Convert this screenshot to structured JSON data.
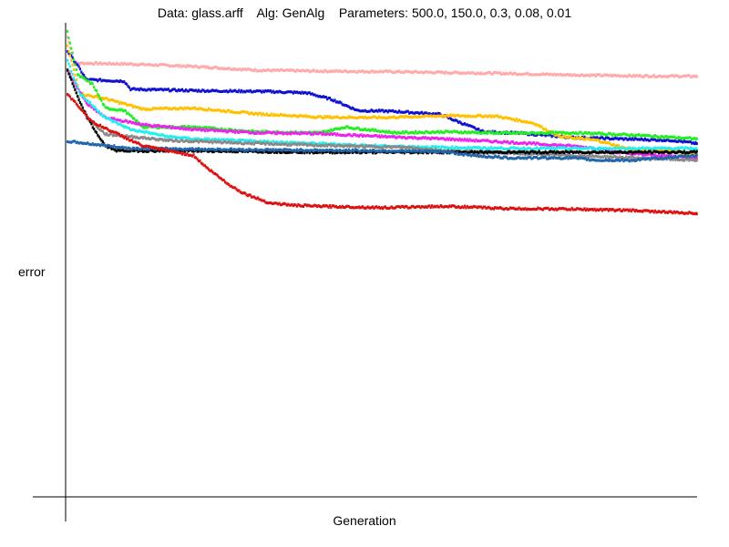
{
  "chart_data": {
    "type": "scatter",
    "title": "Data: glass.arff    Alg: GenAlg    Parameters: 500.0, 150.0, 0.3, 0.08, 0.01",
    "xlabel": "Generation",
    "ylabel": "error",
    "xlim": [
      0,
      500
    ],
    "ylim": [
      0,
      1
    ],
    "grid": false,
    "legend": "none",
    "series": [
      {
        "color": "#ffaaaa",
        "points": [
          [
            0,
            0.97
          ],
          [
            5,
            0.915
          ],
          [
            50,
            0.913
          ],
          [
            100,
            0.908
          ],
          [
            150,
            0.9
          ],
          [
            200,
            0.898
          ],
          [
            250,
            0.897
          ],
          [
            300,
            0.895
          ],
          [
            350,
            0.893
          ],
          [
            400,
            0.89
          ],
          [
            450,
            0.888
          ],
          [
            500,
            0.887
          ]
        ]
      },
      {
        "color": "#1010d0",
        "points": [
          [
            0,
            0.94
          ],
          [
            8,
            0.91
          ],
          [
            15,
            0.88
          ],
          [
            45,
            0.877
          ],
          [
            50,
            0.86
          ],
          [
            100,
            0.857
          ],
          [
            160,
            0.855
          ],
          [
            190,
            0.852
          ],
          [
            210,
            0.838
          ],
          [
            230,
            0.815
          ],
          [
            260,
            0.813
          ],
          [
            295,
            0.807
          ],
          [
            330,
            0.77
          ],
          [
            360,
            0.767
          ],
          [
            400,
            0.758
          ],
          [
            440,
            0.755
          ],
          [
            480,
            0.752
          ],
          [
            500,
            0.745
          ]
        ]
      },
      {
        "color": "#ffc000",
        "points": [
          [
            0,
            0.95
          ],
          [
            10,
            0.85
          ],
          [
            30,
            0.84
          ],
          [
            60,
            0.818
          ],
          [
            100,
            0.82
          ],
          [
            150,
            0.808
          ],
          [
            200,
            0.801
          ],
          [
            250,
            0.8
          ],
          [
            300,
            0.804
          ],
          [
            340,
            0.803
          ],
          [
            370,
            0.788
          ],
          [
            390,
            0.76
          ],
          [
            420,
            0.752
          ],
          [
            450,
            0.73
          ],
          [
            480,
            0.73
          ],
          [
            500,
            0.72
          ]
        ]
      },
      {
        "color": "#22ee22",
        "points": [
          [
            0,
            0.98
          ],
          [
            8,
            0.89
          ],
          [
            20,
            0.87
          ],
          [
            30,
            0.82
          ],
          [
            45,
            0.815
          ],
          [
            60,
            0.78
          ],
          [
            100,
            0.78
          ],
          [
            150,
            0.77
          ],
          [
            200,
            0.768
          ],
          [
            220,
            0.78
          ],
          [
            260,
            0.768
          ],
          [
            300,
            0.77
          ],
          [
            350,
            0.767
          ],
          [
            400,
            0.768
          ],
          [
            450,
            0.763
          ],
          [
            500,
            0.755
          ]
        ]
      },
      {
        "color": "#ee22ee",
        "points": [
          [
            0,
            0.9
          ],
          [
            15,
            0.83
          ],
          [
            30,
            0.8
          ],
          [
            60,
            0.785
          ],
          [
            100,
            0.775
          ],
          [
            150,
            0.768
          ],
          [
            200,
            0.766
          ],
          [
            250,
            0.76
          ],
          [
            300,
            0.755
          ],
          [
            350,
            0.748
          ],
          [
            400,
            0.74
          ],
          [
            420,
            0.735
          ],
          [
            440,
            0.725
          ],
          [
            470,
            0.72
          ],
          [
            500,
            0.715
          ]
        ]
      },
      {
        "color": "#22eeee",
        "points": [
          [
            0,
            0.92
          ],
          [
            10,
            0.85
          ],
          [
            30,
            0.8
          ],
          [
            50,
            0.775
          ],
          [
            80,
            0.76
          ],
          [
            100,
            0.755
          ],
          [
            150,
            0.75
          ],
          [
            200,
            0.745
          ],
          [
            250,
            0.74
          ],
          [
            300,
            0.737
          ],
          [
            350,
            0.735
          ],
          [
            400,
            0.735
          ],
          [
            450,
            0.735
          ],
          [
            500,
            0.735
          ]
        ]
      },
      {
        "color": "#888888",
        "points": [
          [
            0,
            0.9
          ],
          [
            15,
            0.8
          ],
          [
            30,
            0.765
          ],
          [
            50,
            0.76
          ],
          [
            80,
            0.752
          ],
          [
            120,
            0.748
          ],
          [
            180,
            0.743
          ],
          [
            220,
            0.74
          ],
          [
            270,
            0.737
          ],
          [
            300,
            0.73
          ],
          [
            350,
            0.725
          ],
          [
            400,
            0.72
          ],
          [
            450,
            0.715
          ],
          [
            500,
            0.71
          ]
        ]
      },
      {
        "color": "#000000",
        "points": [
          [
            0,
            0.9
          ],
          [
            10,
            0.83
          ],
          [
            20,
            0.78
          ],
          [
            30,
            0.74
          ],
          [
            40,
            0.73
          ],
          [
            100,
            0.73
          ],
          [
            200,
            0.727
          ],
          [
            300,
            0.727
          ],
          [
            400,
            0.727
          ],
          [
            500,
            0.727
          ]
        ]
      },
      {
        "color": "#2266aa",
        "points": [
          [
            0,
            0.75
          ],
          [
            50,
            0.735
          ],
          [
            150,
            0.732
          ],
          [
            250,
            0.73
          ],
          [
            300,
            0.728
          ],
          [
            320,
            0.72
          ],
          [
            350,
            0.715
          ],
          [
            400,
            0.715
          ],
          [
            420,
            0.71
          ],
          [
            450,
            0.71
          ],
          [
            470,
            0.715
          ],
          [
            500,
            0.72
          ]
        ]
      },
      {
        "color": "#dd1111",
        "points": [
          [
            0,
            0.85
          ],
          [
            20,
            0.79
          ],
          [
            40,
            0.765
          ],
          [
            60,
            0.74
          ],
          [
            80,
            0.73
          ],
          [
            100,
            0.72
          ],
          [
            110,
            0.695
          ],
          [
            120,
            0.675
          ],
          [
            130,
            0.655
          ],
          [
            140,
            0.64
          ],
          [
            160,
            0.62
          ],
          [
            180,
            0.615
          ],
          [
            200,
            0.613
          ],
          [
            250,
            0.61
          ],
          [
            300,
            0.613
          ],
          [
            350,
            0.608
          ],
          [
            400,
            0.607
          ],
          [
            450,
            0.604
          ],
          [
            480,
            0.6
          ],
          [
            500,
            0.598
          ]
        ]
      }
    ]
  }
}
